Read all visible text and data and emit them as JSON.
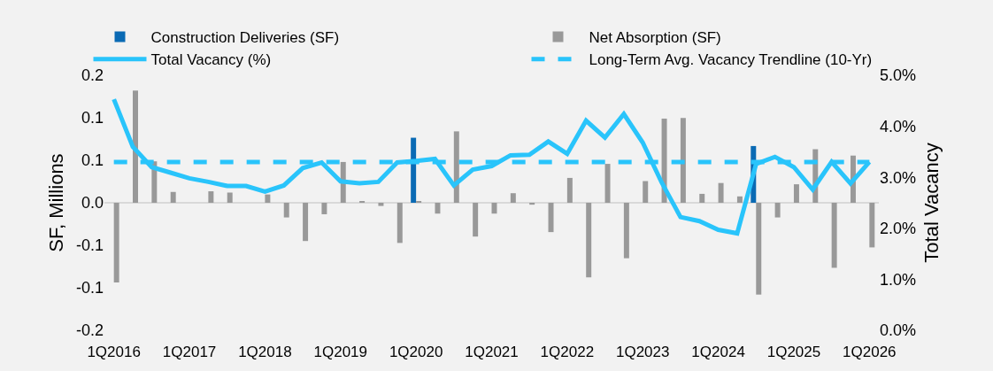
{
  "chart_data": {
    "type": "bar",
    "categories": [
      "1Q2016",
      null,
      null,
      null,
      "1Q2017",
      null,
      null,
      null,
      "1Q2018",
      null,
      null,
      null,
      "1Q2019",
      null,
      null,
      null,
      "1Q2020",
      null,
      null,
      null,
      "1Q2021",
      null,
      null,
      null,
      "1Q2022",
      null,
      null,
      null,
      "1Q2023",
      null,
      null,
      null,
      "1Q2024",
      null,
      null,
      null,
      "1Q2025",
      null,
      null,
      null,
      "1Q2026"
    ],
    "series": [
      {
        "name": "Construction Deliveries (SF)",
        "color": "#0a6ab4",
        "values": [
          0,
          0,
          0,
          0,
          0,
          0,
          0,
          0,
          0,
          0,
          0,
          0,
          0,
          0,
          0,
          0,
          0.102,
          0,
          0,
          0,
          0,
          0,
          0,
          0,
          0,
          0,
          0,
          0,
          0,
          0,
          0,
          0,
          0,
          0,
          0.089,
          0,
          0,
          0,
          0,
          0,
          0
        ]
      },
      {
        "name": "Net Absorption (SF)",
        "color": "#999999",
        "values": [
          -0.125,
          0.176,
          0.065,
          0.017,
          0,
          0.018,
          0.016,
          0,
          0.013,
          -0.023,
          -0.06,
          -0.018,
          0.064,
          0.002,
          -0.005,
          -0.063,
          0.002,
          -0.017,
          0.112,
          -0.053,
          -0.017,
          0.015,
          -0.003,
          -0.046,
          0.039,
          -0.117,
          0.061,
          -0.087,
          0.034,
          0.132,
          0.133,
          0.014,
          0.031,
          0.01,
          -0.144,
          -0.023,
          0.029,
          0.084,
          -0.102,
          0.074,
          -0.07
        ]
      },
      {
        "name": "Total Vacancy (%)",
        "type": "line",
        "axis": "y2",
        "color": "#29c4fb",
        "line_style": "solid",
        "values": [
          4.53,
          3.6,
          3.2,
          3.09,
          2.98,
          2.91,
          2.83,
          2.83,
          2.72,
          2.84,
          3.18,
          3.29,
          2.92,
          2.88,
          2.91,
          3.29,
          3.32,
          3.36,
          2.84,
          3.15,
          3.22,
          3.43,
          3.44,
          3.7,
          3.46,
          4.11,
          3.78,
          4.24,
          3.68,
          2.9,
          2.22,
          2.14,
          1.97,
          1.9,
          3.26,
          3.4,
          3.2,
          2.76,
          3.3,
          2.88,
          3.3
        ]
      },
      {
        "name": "Long-Term Avg. Vacancy Trendline (10-Yr)",
        "type": "line",
        "axis": "y2",
        "color": "#29c4fb",
        "line_style": "dashed",
        "values": [
          3.3,
          3.3,
          3.3,
          3.3,
          3.3,
          3.3,
          3.3,
          3.3,
          3.3,
          3.3,
          3.3,
          3.3,
          3.3,
          3.3,
          3.3,
          3.3,
          3.3,
          3.3,
          3.3,
          3.3,
          3.3,
          3.3,
          3.3,
          3.3,
          3.3,
          3.3,
          3.3,
          3.3,
          3.3,
          3.3,
          3.3,
          3.3,
          3.3,
          3.3,
          3.3,
          3.3,
          3.3,
          3.3,
          3.3,
          3.3,
          3.3
        ]
      }
    ],
    "ylabel": "SF, Millions",
    "y2label": "Total Vacancy",
    "ylim": [
      -0.2,
      0.2
    ],
    "yticks": [
      {
        "value": -0.2,
        "label": "-0.2"
      },
      {
        "value": -0.13333,
        "label": "-0.1"
      },
      {
        "value": -0.06667,
        "label": "-0.1"
      },
      {
        "value": 0,
        "label": "0.0"
      },
      {
        "value": 0.06667,
        "label": "0.1"
      },
      {
        "value": 0.13333,
        "label": "0.1"
      },
      {
        "value": 0.2,
        "label": "0.2"
      }
    ],
    "y2lim": [
      0,
      5
    ],
    "y2ticks": [
      {
        "value": 0,
        "label": "0.0%"
      },
      {
        "value": 1,
        "label": "1.0%"
      },
      {
        "value": 2,
        "label": "2.0%"
      },
      {
        "value": 3,
        "label": "3.0%"
      },
      {
        "value": 4,
        "label": "4.0%"
      },
      {
        "value": 5,
        "label": "5.0%"
      }
    ],
    "ref_lines": [
      {
        "axis": "y",
        "value": 0,
        "color": "#d9d9d9"
      }
    ],
    "grid": false,
    "legend": "top",
    "marker": "none"
  }
}
